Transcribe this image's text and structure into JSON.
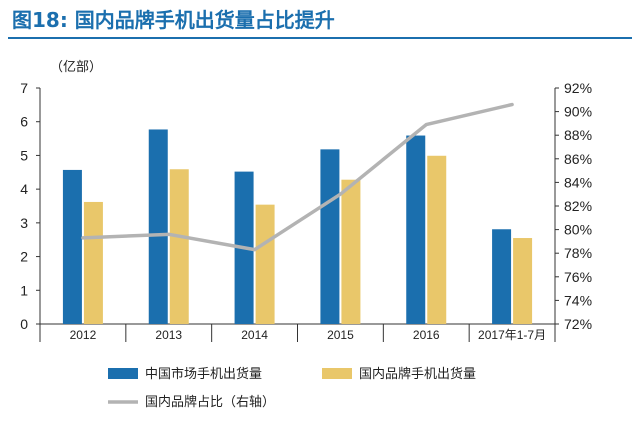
{
  "header": {
    "title": "图18:  国内品牌手机出货量占比提升"
  },
  "colors": {
    "bar_market": "#1b6fae",
    "bar_domestic": "#e9c76a",
    "line_share": "#b3b3b3",
    "title": "#1b6fae"
  },
  "chart_data": {
    "type": "bar",
    "title": "图18:  国内品牌手机出货量占比提升",
    "ylabel": "（亿部）",
    "categories": [
      "2012",
      "2013",
      "2014",
      "2015",
      "2016",
      "2017年1-7月"
    ],
    "series": [
      {
        "name": "中国市场手机出货量",
        "type": "bar",
        "axis": "left",
        "values": [
          4.57,
          5.77,
          4.52,
          5.18,
          5.59,
          2.81
        ]
      },
      {
        "name": "国内品牌手机出货量",
        "type": "bar",
        "axis": "left",
        "values": [
          3.62,
          4.59,
          3.54,
          4.28,
          4.99,
          2.55
        ]
      },
      {
        "name": "国内品牌占比（右轴）",
        "type": "line",
        "axis": "right",
        "values": [
          79.3,
          79.6,
          78.3,
          83.0,
          88.9,
          90.6
        ]
      }
    ],
    "ylim": [
      0,
      7
    ],
    "y_ticks": [
      "0",
      "1",
      "2",
      "3",
      "4",
      "5",
      "6",
      "7"
    ],
    "y2lim": [
      72,
      92
    ],
    "y2_ticks": [
      "72%",
      "74%",
      "76%",
      "78%",
      "80%",
      "82%",
      "84%",
      "86%",
      "88%",
      "90%",
      "92%"
    ],
    "grid": false,
    "legend_position": "bottom"
  }
}
